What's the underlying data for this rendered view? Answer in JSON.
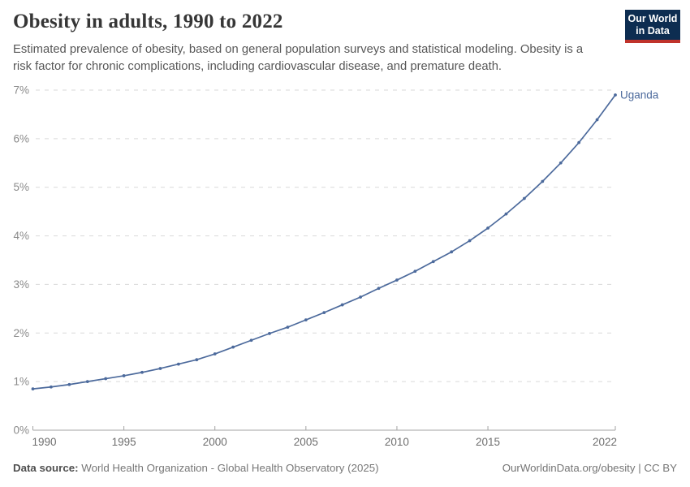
{
  "header": {
    "title": "Obesity in adults, 1990 to 2022",
    "subtitle": "Estimated prevalence of obesity, based on general population surveys and statistical modeling. Obesity is a risk factor for chronic complications, including cardiovascular disease, and premature death.",
    "logo": {
      "line1": "Our World",
      "line2": "in Data",
      "bg_color": "#0d2d51",
      "accent_color": "#c0332b"
    }
  },
  "chart_data": {
    "type": "line",
    "title": "Obesity in adults, 1990 to 2022",
    "xlabel": "",
    "ylabel": "",
    "xlim": [
      1990,
      2022
    ],
    "ylim": [
      0,
      7
    ],
    "grid": "horizontal-dashed",
    "legend_position": "end-of-line-label",
    "x": [
      1990,
      1991,
      1992,
      1993,
      1994,
      1995,
      1996,
      1997,
      1998,
      1999,
      2000,
      2001,
      2002,
      2003,
      2004,
      2005,
      2006,
      2007,
      2008,
      2009,
      2010,
      2011,
      2012,
      2013,
      2014,
      2015,
      2016,
      2017,
      2018,
      2019,
      2020,
      2021,
      2022
    ],
    "series": [
      {
        "name": "Uganda",
        "color": "#4c6a9c",
        "values": [
          0.85,
          0.89,
          0.94,
          1.0,
          1.06,
          1.12,
          1.19,
          1.27,
          1.36,
          1.45,
          1.57,
          1.71,
          1.85,
          1.99,
          2.12,
          2.27,
          2.42,
          2.58,
          2.74,
          2.92,
          3.09,
          3.27,
          3.47,
          3.67,
          3.9,
          4.16,
          4.45,
          4.77,
          5.12,
          5.5,
          5.92,
          6.39,
          6.9
        ]
      }
    ],
    "yticks": [
      {
        "value": 0,
        "label": "0%"
      },
      {
        "value": 1,
        "label": "1%"
      },
      {
        "value": 2,
        "label": "2%"
      },
      {
        "value": 3,
        "label": "3%"
      },
      {
        "value": 4,
        "label": "4%"
      },
      {
        "value": 5,
        "label": "5%"
      },
      {
        "value": 6,
        "label": "6%"
      },
      {
        "value": 7,
        "label": "7%"
      }
    ],
    "xticks": [
      {
        "value": 1990,
        "label": "1990"
      },
      {
        "value": 1995,
        "label": "1995"
      },
      {
        "value": 2000,
        "label": "2000"
      },
      {
        "value": 2005,
        "label": "2005"
      },
      {
        "value": 2010,
        "label": "2010"
      },
      {
        "value": 2015,
        "label": "2015"
      },
      {
        "value": 2022,
        "label": "2022"
      }
    ],
    "colors": {
      "gridline": "#d9d9d9",
      "axis": "#a3a3a3",
      "ytick_text": "#8a8a8a",
      "xtick_text": "#6e6e6e"
    }
  },
  "footer": {
    "datasource_label": "Data source:",
    "datasource_text": " World Health Organization - Global Health Observatory (2025)",
    "link_text": "OurWorldinData.org/obesity | CC BY"
  }
}
